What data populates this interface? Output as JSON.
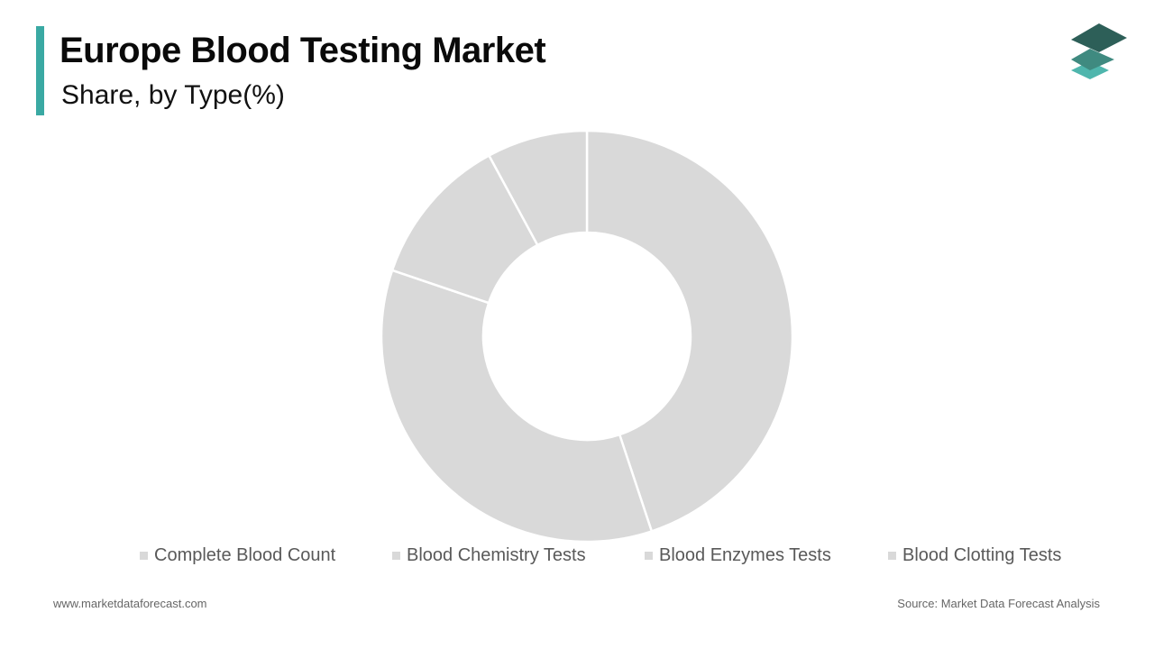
{
  "header": {
    "title": "Europe Blood Testing Market",
    "subtitle": "Share, by Type(%)",
    "accent_color": "#3aa9a3"
  },
  "logo": {
    "icon": "stacked-layers-logo-icon",
    "colors": [
      "#2d5f58",
      "#3f8a80",
      "#4fb6ad"
    ]
  },
  "chart_data": {
    "type": "pie",
    "donut": true,
    "title": "Europe Blood Testing Market",
    "subtitle": "Share, by Type(%)",
    "categories": [
      "Complete Blood Count",
      "Blood Chemistry Tests",
      "Blood Enzymes Tests",
      "Blood Clotting Tests"
    ],
    "values": [
      44.9,
      35.3,
      11.9,
      7.9
    ],
    "colors": [
      "#d9d9d9",
      "#d9d9d9",
      "#d9d9d9",
      "#d9d9d9"
    ],
    "legend_position": "bottom"
  },
  "footer": {
    "website": "www.marketdataforecast.com",
    "source": "Source: Market Data Forecast Analysis"
  }
}
